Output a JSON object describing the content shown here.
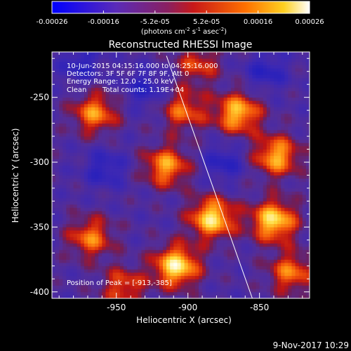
{
  "colorbar": {
    "ticks": [
      "-0.00026",
      "-0.00016",
      "-5.2e-05",
      "5.2e-05",
      "0.00016",
      "0.00026"
    ],
    "units_text": "(photons cm",
    "units_sup1": "-2",
    "units_mid": " s",
    "units_sup2": "-1",
    "units_mid2": " asec",
    "units_sup3": "-2",
    "units_end": ")"
  },
  "chart_data": {
    "type": "heatmap",
    "title": "Reconstructed RHESSI Image",
    "xlabel": "Heliocentric X (arcsec)",
    "ylabel": "Heliocentric Y (arcsec)",
    "xlim": [
      -995,
      -815
    ],
    "ylim": [
      -405,
      -215
    ],
    "x_ticks": [
      -950,
      -900,
      -850
    ],
    "y_ticks": [
      -400,
      -350,
      -300,
      -250
    ],
    "colormap": "blue-purple-red-orange-yellow-white",
    "value_range": [
      -0.00026,
      0.00026
    ],
    "limb_line": {
      "x": [
        -915,
        -855
      ],
      "y": [
        -218,
        -405
      ]
    },
    "bright_regions": [
      {
        "x": -908,
        "y": -380,
        "level": 0.95
      },
      {
        "x": -883,
        "y": -343,
        "level": 0.9
      },
      {
        "x": -915,
        "y": -303,
        "level": 0.7
      },
      {
        "x": -840,
        "y": -345,
        "level": 0.9
      },
      {
        "x": -865,
        "y": -262,
        "level": 0.8
      },
      {
        "x": -838,
        "y": -295,
        "level": 0.75
      },
      {
        "x": -965,
        "y": -262,
        "level": 0.65
      },
      {
        "x": -968,
        "y": -358,
        "level": 0.6
      },
      {
        "x": -903,
        "y": -260,
        "level": 0.55
      },
      {
        "x": -828,
        "y": -385,
        "level": 0.6
      },
      {
        "x": -945,
        "y": -396,
        "level": 0.5
      },
      {
        "x": -893,
        "y": -224,
        "level": 0.45
      }
    ],
    "dark_regions": [
      {
        "x": -958,
        "y": -305
      },
      {
        "x": -930,
        "y": -243
      },
      {
        "x": -875,
        "y": -300
      },
      {
        "x": -845,
        "y": -230
      },
      {
        "x": -975,
        "y": -225
      }
    ],
    "annotations": {
      "time_range": "10-Jun-2015 04:15:16.000 to 04:25:16.000",
      "detectors": "Detectors: 3F 5F 6F 7F 8F 9F, Att 0",
      "energy": "Energy Range: 12.0 - 25.0 keV",
      "method": "Clean",
      "counts": "Total counts: 1.19E+04",
      "peak": "Position of Peak = [-913,-385]"
    }
  },
  "footer": {
    "date": "9-Nov-2017 10:29"
  }
}
